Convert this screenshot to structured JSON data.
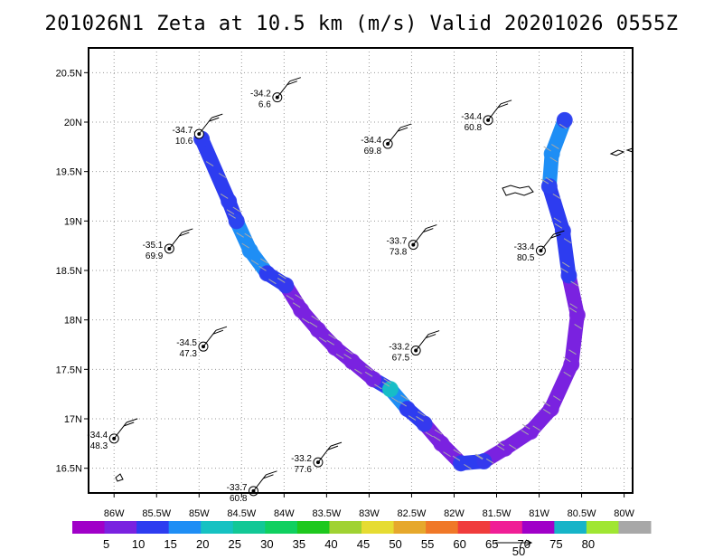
{
  "title": "201026N1 Zeta at 10.5 km (m/s) Valid 20201026 0555Z",
  "colors": {
    "grid": "#9a9a9a",
    "coast": "#000000",
    "wind_arrow": "#a8a8a8"
  },
  "chart_data": {
    "type": "scatter",
    "title": "201026N1 Zeta at 10.5 km (m/s) Valid 20201026 0555Z",
    "xlim": [
      -86.3,
      -79.9
    ],
    "ylim": [
      16.25,
      20.75
    ],
    "x_ticks": [
      -86,
      -85.5,
      -85,
      -84.5,
      -84,
      -83.5,
      -83,
      -82.5,
      -82,
      -81.5,
      -81,
      -80.5,
      -80
    ],
    "x_tick_labels": [
      "86W",
      "85.5W",
      "85W",
      "84.5W",
      "84W",
      "83.5W",
      "83W",
      "82.5W",
      "82W",
      "81.5W",
      "81W",
      "80.5W",
      "80W"
    ],
    "y_ticks": [
      16.5,
      17,
      17.5,
      18,
      18.5,
      19,
      19.5,
      20,
      20.5
    ],
    "y_tick_labels": [
      "16.5N",
      "17N",
      "17.5N",
      "18N",
      "18.5N",
      "19N",
      "19.5N",
      "20N",
      "20.5N"
    ],
    "grid": true,
    "stations": [
      {
        "lon": -84.08,
        "lat": 20.25,
        "v1": "-34.2",
        "v2": "6.6"
      },
      {
        "lon": -85.0,
        "lat": 19.88,
        "v1": "-34.7",
        "v2": "10.6"
      },
      {
        "lon": -82.78,
        "lat": 19.78,
        "v1": "-34.4",
        "v2": "69.8"
      },
      {
        "lon": -81.6,
        "lat": 20.02,
        "v1": "-34.4",
        "v2": "60.8"
      },
      {
        "lon": -85.35,
        "lat": 18.72,
        "v1": "-35.1",
        "v2": "69.9"
      },
      {
        "lon": -82.48,
        "lat": 18.76,
        "v1": "-33.7",
        "v2": "73.8"
      },
      {
        "lon": -80.98,
        "lat": 18.7,
        "v1": "-33.4",
        "v2": "80.5"
      },
      {
        "lon": -84.95,
        "lat": 17.73,
        "v1": "-34.5",
        "v2": "47.3"
      },
      {
        "lon": -82.45,
        "lat": 17.69,
        "v1": "-33.2",
        "v2": "67.5"
      },
      {
        "lon": -86.0,
        "lat": 16.8,
        "v1": "-34.4",
        "v2": "48.3"
      },
      {
        "lon": -83.6,
        "lat": 16.56,
        "v1": "-33.2",
        "v2": "77.6"
      },
      {
        "lon": -84.36,
        "lat": 16.27,
        "v1": "-33.7",
        "v2": "60.8"
      }
    ],
    "swath": [
      {
        "lon": -84.97,
        "lat": 19.83,
        "v": 12
      },
      {
        "lon": -84.65,
        "lat": 19.2,
        "v": 12
      },
      {
        "lon": -84.56,
        "lat": 19.0,
        "v": 14
      },
      {
        "lon": -84.4,
        "lat": 18.7,
        "v": 18
      },
      {
        "lon": -84.2,
        "lat": 18.47,
        "v": 12
      },
      {
        "lon": -83.98,
        "lat": 18.35,
        "v": 10
      },
      {
        "lon": -83.8,
        "lat": 18.1,
        "v": 6
      },
      {
        "lon": -83.6,
        "lat": 17.9,
        "v": 5
      },
      {
        "lon": -83.4,
        "lat": 17.72,
        "v": 5
      },
      {
        "lon": -83.2,
        "lat": 17.58,
        "v": 5
      },
      {
        "lon": -82.95,
        "lat": 17.4,
        "v": 7
      },
      {
        "lon": -82.75,
        "lat": 17.3,
        "v": 20
      },
      {
        "lon": -82.55,
        "lat": 17.1,
        "v": 14
      },
      {
        "lon": -82.35,
        "lat": 16.95,
        "v": 13
      },
      {
        "lon": -82.15,
        "lat": 16.75,
        "v": 5
      },
      {
        "lon": -81.92,
        "lat": 16.55,
        "v": 12
      },
      {
        "lon": -81.65,
        "lat": 16.57,
        "v": 10
      },
      {
        "lon": -81.4,
        "lat": 16.7,
        "v": 5
      },
      {
        "lon": -81.1,
        "lat": 16.87,
        "v": 5
      },
      {
        "lon": -80.86,
        "lat": 17.1,
        "v": 5
      },
      {
        "lon": -80.62,
        "lat": 17.55,
        "v": 5
      },
      {
        "lon": -80.55,
        "lat": 18.05,
        "v": 5
      },
      {
        "lon": -80.65,
        "lat": 18.45,
        "v": 12
      },
      {
        "lon": -80.72,
        "lat": 18.9,
        "v": 14
      },
      {
        "lon": -80.88,
        "lat": 19.35,
        "v": 12
      },
      {
        "lon": -80.85,
        "lat": 19.68,
        "v": 18
      },
      {
        "lon": -80.7,
        "lat": 20.02,
        "v": 12
      }
    ],
    "colorbar": {
      "labels": [
        "5",
        "10",
        "15",
        "20",
        "25",
        "30",
        "35",
        "40",
        "45",
        "50",
        "55",
        "60",
        "65",
        "70",
        "75",
        "80"
      ],
      "colors": [
        "#a000c8",
        "#7a22e0",
        "#2d3cf0",
        "#1e8ef5",
        "#16c2c2",
        "#12c896",
        "#10d060",
        "#1ec81e",
        "#a0d232",
        "#e6dc32",
        "#e6a82c",
        "#f07828",
        "#f03c3c",
        "#f01e96",
        "#a000c8",
        "#16b4c8",
        "#a0e632",
        "#a8a8a8"
      ],
      "reference_vector": "50"
    }
  }
}
